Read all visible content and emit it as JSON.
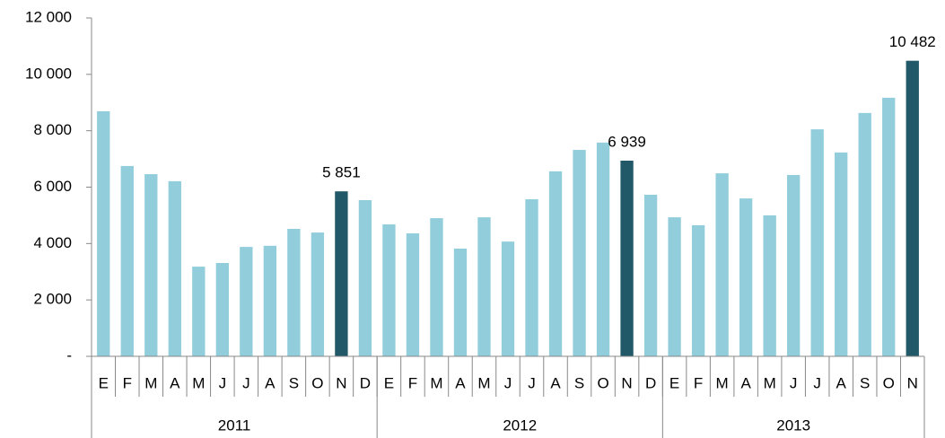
{
  "chart_data": {
    "type": "bar",
    "categories": [
      "E",
      "F",
      "M",
      "A",
      "M",
      "J",
      "J",
      "A",
      "S",
      "O",
      "N",
      "D",
      "E",
      "F",
      "M",
      "A",
      "M",
      "J",
      "J",
      "A",
      "S",
      "O",
      "N",
      "D",
      "E",
      "F",
      "M",
      "A",
      "M",
      "J",
      "J",
      "A",
      "S",
      "O",
      "N"
    ],
    "groups": [
      {
        "label": "2011",
        "count": 12
      },
      {
        "label": "2012",
        "count": 12
      },
      {
        "label": "2013",
        "count": 11
      }
    ],
    "values": [
      8690,
      6750,
      6460,
      6210,
      3180,
      3310,
      3880,
      3920,
      4520,
      4390,
      5851,
      5540,
      4680,
      4360,
      4900,
      3820,
      4930,
      4070,
      5570,
      6560,
      7320,
      7580,
      6939,
      5730,
      4930,
      4650,
      6490,
      5600,
      5000,
      6430,
      8050,
      7230,
      8630,
      9170,
      10482
    ],
    "value_labels": [
      null,
      null,
      null,
      null,
      null,
      null,
      null,
      null,
      null,
      null,
      "5 851",
      null,
      null,
      null,
      null,
      null,
      null,
      null,
      null,
      null,
      null,
      null,
      "6 939",
      null,
      null,
      null,
      null,
      null,
      null,
      null,
      null,
      null,
      null,
      null,
      "10 482"
    ],
    "color": "#92cddc",
    "highlight_color": "#215968",
    "ylim": [
      0,
      12000
    ],
    "yticks": [
      {
        "value": 0,
        "label": "-"
      },
      {
        "value": 2000,
        "label": "2 000"
      },
      {
        "value": 4000,
        "label": "4 000"
      },
      {
        "value": 6000,
        "label": "6 000"
      },
      {
        "value": 8000,
        "label": "8 000"
      },
      {
        "value": 10000,
        "label": "10 000"
      },
      {
        "value": 12000,
        "label": "12 000"
      }
    ]
  }
}
